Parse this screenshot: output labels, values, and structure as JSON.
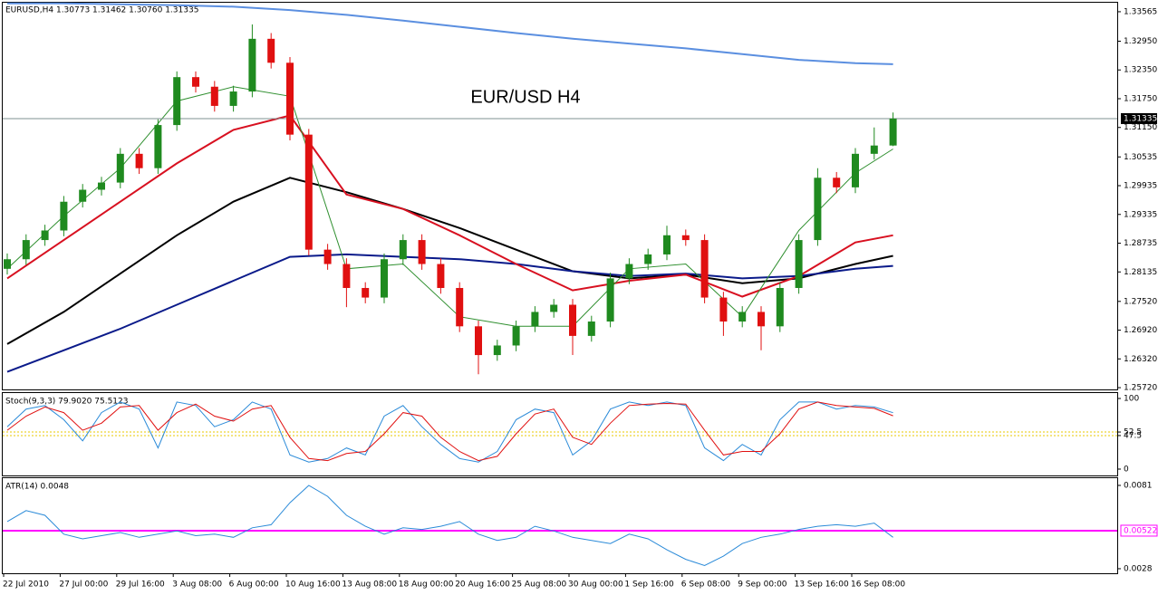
{
  "header": "EURUSD,H4  1.30773 1.31462 1.30760 1.31335",
  "chart_data": [
    {
      "type": "candlestick",
      "annotation": "EUR/USD H4",
      "categories": [
        "22 Jul 2010",
        null,
        null,
        "27 Jul 00:00",
        null,
        null,
        "29 Jul 16:00",
        null,
        null,
        "3 Aug 08:00",
        null,
        null,
        "6 Aug 00:00",
        null,
        null,
        "10 Aug 16:00",
        null,
        null,
        "13 Aug 08:00",
        null,
        null,
        "18 Aug 00:00",
        null,
        null,
        "20 Aug 16:00",
        null,
        null,
        "25 Aug 08:00",
        null,
        null,
        "30 Aug 00:00",
        null,
        null,
        "1 Sep 16:00",
        null,
        null,
        "6 Sep 08:00",
        null,
        null,
        "9 Sep 00:00",
        null,
        null,
        "13 Sep 16:00",
        null,
        null,
        "16 Sep 08:00",
        null,
        null
      ],
      "open": [
        1.282,
        1.284,
        1.288,
        1.29,
        1.296,
        1.2985,
        1.3,
        1.306,
        1.303,
        1.312,
        1.322,
        1.32,
        1.316,
        1.319,
        1.33,
        1.325,
        1.31,
        1.286,
        1.283,
        1.278,
        1.276,
        1.284,
        1.288,
        1.283,
        1.278,
        1.27,
        1.264,
        1.266,
        1.27,
        1.273,
        1.2745,
        1.268,
        1.271,
        1.28,
        1.283,
        1.285,
        1.289,
        1.288,
        1.276,
        1.271,
        1.273,
        1.27,
        1.278,
        1.288,
        1.301,
        1.299,
        1.306,
        1.30773
      ],
      "high": [
        1.2852,
        1.2892,
        1.2912,
        1.2972,
        1.2997,
        1.3012,
        1.3072,
        1.3072,
        1.3132,
        1.3232,
        1.3232,
        1.3212,
        1.3202,
        1.333,
        1.3312,
        1.3262,
        1.3112,
        1.2872,
        1.2842,
        1.2792,
        1.2852,
        1.2892,
        1.2892,
        1.2842,
        1.2792,
        1.2712,
        1.2672,
        1.2712,
        1.2742,
        1.2757,
        1.2757,
        1.2722,
        1.2812,
        1.2842,
        1.2862,
        1.291,
        1.2902,
        1.2892,
        1.2772,
        1.2742,
        1.2742,
        1.2792,
        1.2892,
        1.303,
        1.3022,
        1.3072,
        1.3115,
        1.31462
      ],
      "low": [
        1.2808,
        1.2828,
        1.2868,
        1.2888,
        1.2948,
        1.2973,
        1.2988,
        1.3018,
        1.3018,
        1.3108,
        1.3188,
        1.3148,
        1.3148,
        1.3178,
        1.3238,
        1.3088,
        1.2848,
        1.2818,
        1.274,
        1.2748,
        1.2748,
        1.2828,
        1.2818,
        1.2768,
        1.2688,
        1.26,
        1.2628,
        1.2648,
        1.2688,
        1.2718,
        1.264,
        1.2668,
        1.2698,
        1.2788,
        1.2818,
        1.2838,
        1.2868,
        1.2748,
        1.268,
        1.2698,
        1.265,
        1.2688,
        1.2768,
        1.2868,
        1.2978,
        1.2978,
        1.3048,
        1.3076
      ],
      "close": [
        1.284,
        1.288,
        1.29,
        1.296,
        1.2985,
        1.3,
        1.306,
        1.303,
        1.312,
        1.322,
        1.32,
        1.316,
        1.319,
        1.33,
        1.325,
        1.31,
        1.286,
        1.283,
        1.278,
        1.276,
        1.284,
        1.288,
        1.283,
        1.278,
        1.27,
        1.264,
        1.266,
        1.27,
        1.273,
        1.2745,
        1.268,
        1.271,
        1.28,
        1.283,
        1.285,
        1.289,
        1.288,
        1.276,
        1.271,
        1.273,
        1.27,
        1.278,
        1.288,
        1.301,
        1.299,
        1.306,
        1.30773,
        1.31335
      ],
      "up_color": "#1f8a1f",
      "down_color": "#e01010",
      "overlay_x": [
        0,
        3,
        6,
        9,
        12,
        15,
        18,
        21,
        24,
        27,
        30,
        33,
        36,
        39,
        42,
        45,
        47
      ],
      "overlays": [
        {
          "color": "#5b8fe0",
          "values": [
            1.3374,
            1.3374,
            1.3372,
            1.337,
            1.3367,
            1.336,
            1.335,
            1.3338,
            1.3325,
            1.3312,
            1.33,
            1.329,
            1.328,
            1.3268,
            1.3256,
            1.3249,
            1.3247
          ]
        },
        {
          "color": "#000000",
          "values": [
            1.2663,
            1.273,
            1.281,
            1.289,
            1.296,
            1.301,
            1.298,
            1.2945,
            1.2905,
            1.286,
            1.2815,
            1.28,
            1.2808,
            1.279,
            1.28,
            1.283,
            1.2847
          ]
        },
        {
          "color": "#0a1a8a",
          "values": [
            1.2605,
            1.265,
            1.2695,
            1.2745,
            1.2795,
            1.2845,
            1.285,
            1.2845,
            1.284,
            1.283,
            1.2815,
            1.2805,
            1.281,
            1.28,
            1.2805,
            1.282,
            1.2826
          ]
        },
        {
          "color": "#d81020",
          "values": [
            1.28,
            1.288,
            1.296,
            1.304,
            1.311,
            1.314,
            1.2975,
            1.2945,
            1.289,
            1.283,
            1.2775,
            1.2795,
            1.2808,
            1.2762,
            1.2805,
            1.2875,
            1.289
          ]
        },
        {
          "color": "#2f8f2f",
          "values": [
            1.282,
            1.293,
            1.303,
            1.317,
            1.32,
            1.318,
            1.282,
            1.283,
            1.272,
            1.27,
            1.27,
            1.282,
            1.283,
            1.272,
            1.29,
            1.302,
            1.307
          ]
        }
      ],
      "current_price": 1.31335,
      "ylim": [
        1.25683,
        1.33753
      ],
      "yticks": [
        1.33565,
        {
          "value": 1.3295,
          "label": "1.32950"
        },
        {
          "value": 1.3235,
          "label": "1.32350"
        },
        {
          "value": 1.3175,
          "label": "1.31750"
        },
        {
          "value": 1.3115,
          "label": "1.31150"
        },
        1.30535,
        1.29935,
        1.29335,
        1.28735,
        1.28135,
        {
          "value": 1.2752,
          "label": "1.27520"
        },
        {
          "value": 1.2692,
          "label": "1.26920"
        },
        {
          "value": 1.2632,
          "label": "1.26320"
        },
        {
          "value": 1.2572,
          "label": "1.25720"
        }
      ]
    },
    {
      "type": "line",
      "title": "Stoch(9,3,3) 79.9020 75.5123",
      "series": [
        {
          "color": "#2a8ad8",
          "values": [
            60,
            85,
            90,
            70,
            40,
            80,
            95,
            85,
            30,
            95,
            90,
            60,
            70,
            95,
            85,
            20,
            10,
            15,
            30,
            20,
            75,
            90,
            60,
            35,
            15,
            10,
            25,
            70,
            85,
            80,
            20,
            40,
            85,
            95,
            90,
            95,
            90,
            30,
            12,
            35,
            20,
            70,
            95,
            95,
            85,
            90,
            88,
            79.9
          ]
        },
        {
          "color": "#e01010",
          "values": [
            55,
            75,
            88,
            80,
            55,
            65,
            88,
            90,
            55,
            80,
            92,
            75,
            68,
            85,
            90,
            45,
            15,
            12,
            22,
            25,
            50,
            80,
            75,
            45,
            25,
            12,
            18,
            50,
            78,
            85,
            45,
            35,
            65,
            90,
            92,
            93,
            92,
            55,
            20,
            25,
            25,
            50,
            85,
            95,
            90,
            88,
            86,
            75.5
          ]
        }
      ],
      "levels": [
        52.5,
        47.5
      ],
      "level_color": "#e8c800",
      "ylim": [
        -9,
        107.7
      ],
      "yticks": [
        100,
        52.5,
        47.5,
        0
      ]
    },
    {
      "type": "line",
      "title": "ATR(14) 0.0048",
      "series": [
        {
          "color": "#2a8ad8",
          "values": [
            0.0058,
            0.0065,
            0.0062,
            0.005,
            0.0047,
            0.0049,
            0.0051,
            0.0048,
            0.005,
            0.0052,
            0.0049,
            0.005,
            0.0048,
            0.0054,
            0.0056,
            0.007,
            0.0081,
            0.0074,
            0.0062,
            0.0055,
            0.005,
            0.0054,
            0.0053,
            0.0055,
            0.0058,
            0.005,
            0.0046,
            0.0048,
            0.0055,
            0.0052,
            0.0048,
            0.0046,
            0.0044,
            0.005,
            0.0047,
            0.004,
            0.0034,
            0.003,
            0.0036,
            0.0044,
            0.0048,
            0.005,
            0.0053,
            0.0055,
            0.0056,
            0.0055,
            0.0057,
            0.0048
          ]
        }
      ],
      "level": 0.00522,
      "level_color": "#ff00ff",
      "ylim": [
        0.00251,
        0.00856
      ],
      "yticks": [
        0.0081,
        0.0028
      ]
    }
  ]
}
